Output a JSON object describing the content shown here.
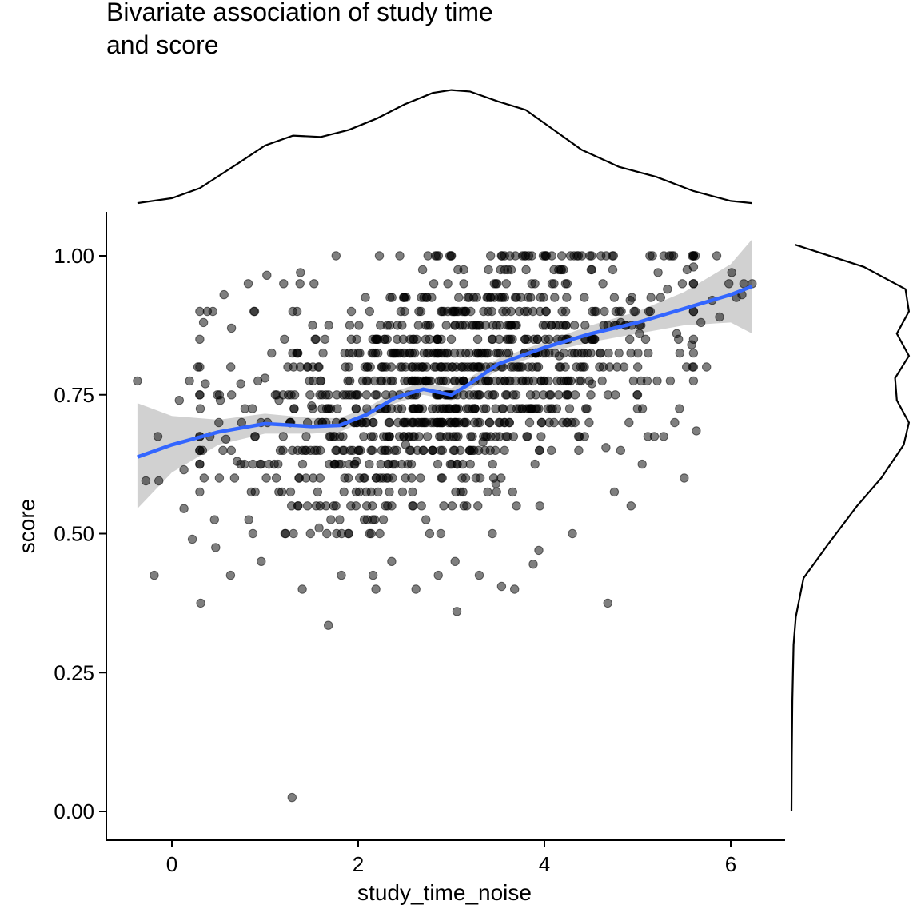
{
  "chart_data": {
    "type": "scatter",
    "title_lines": [
      "Bivariate association of study time",
      "and score"
    ],
    "xlabel": "study_time_noise",
    "ylabel": "score",
    "xlim": [
      -0.7,
      6.6
    ],
    "ylim": [
      -0.05,
      1.08
    ],
    "x_ticks": [
      0,
      2,
      4,
      6
    ],
    "x_tick_labels": [
      "0",
      "2",
      "4",
      "6"
    ],
    "y_ticks": [
      0.0,
      0.25,
      0.5,
      0.75,
      1.0
    ],
    "y_tick_labels": [
      "0.00",
      "0.25",
      "0.50",
      "0.75",
      "1.00"
    ],
    "grid": false,
    "legend": "none",
    "colors": {
      "points": "#000000",
      "smooth_line": "#3366FF",
      "confidence_band": "#BFBFBF",
      "density": "#000000"
    },
    "points": [
      [
        -0.37,
        0.775
      ],
      [
        -0.28,
        0.595
      ],
      [
        -0.19,
        0.425
      ],
      [
        -0.15,
        0.675
      ],
      [
        -0.14,
        0.595
      ],
      [
        0.08,
        0.74
      ],
      [
        0.13,
        0.545
      ],
      [
        0.13,
        0.615
      ],
      [
        0.19,
        0.775
      ],
      [
        0.22,
        0.49
      ],
      [
        0.31,
        0.375
      ],
      [
        0.33,
        0.65
      ],
      [
        0.34,
        0.88
      ],
      [
        0.38,
        0.9
      ],
      [
        0.44,
        0.9
      ],
      [
        0.47,
        0.475
      ],
      [
        0.51,
        0.6
      ],
      [
        0.52,
        0.74
      ],
      [
        0.63,
        0.425
      ],
      [
        0.74,
        0.77
      ],
      [
        0.87,
        0.5
      ],
      [
        0.96,
        0.45
      ],
      [
        1.0,
        0.78
      ],
      [
        1.15,
        0.74
      ],
      [
        1.29,
        0.025
      ],
      [
        1.4,
        0.4
      ],
      [
        1.5,
        0.73
      ],
      [
        1.58,
        0.51
      ],
      [
        1.68,
        0.335
      ],
      [
        1.82,
        0.425
      ],
      [
        1.98,
        0.63
      ],
      [
        2.16,
        0.425
      ],
      [
        2.19,
        0.4
      ],
      [
        2.36,
        0.45
      ],
      [
        2.51,
        0.66
      ],
      [
        2.62,
        0.4
      ],
      [
        2.86,
        0.425
      ],
      [
        3.04,
        0.45
      ],
      [
        3.06,
        0.36
      ],
      [
        3.3,
        0.425
      ],
      [
        3.34,
        0.665
      ],
      [
        3.48,
        0.59
      ],
      [
        3.54,
        0.405
      ],
      [
        3.68,
        0.4
      ],
      [
        3.7,
        0.55
      ],
      [
        3.88,
        0.445
      ],
      [
        3.94,
        0.47
      ],
      [
        4.16,
        0.82
      ],
      [
        4.3,
        0.5
      ],
      [
        4.68,
        0.375
      ],
      [
        4.75,
        0.575
      ],
      [
        4.93,
        0.55
      ],
      [
        5.0,
        0.75
      ],
      [
        5.18,
        0.675
      ],
      [
        5.21,
        0.775
      ],
      [
        5.5,
        0.6
      ],
      [
        5.59,
        0.8
      ],
      [
        5.63,
        0.685
      ],
      [
        5.74,
        0.8
      ],
      [
        5.88,
        0.89
      ],
      [
        6.06,
        0.925
      ],
      [
        6.14,
        0.95
      ],
      [
        6.23,
        0.95
      ],
      [
        6.12,
        0.93
      ],
      [
        5.28,
        0.675
      ],
      [
        4.66,
        0.655
      ],
      [
        4.51,
        0.77
      ],
      [
        4.48,
        0.7
      ],
      [
        4.7,
        0.8
      ],
      [
        4.92,
        0.92
      ],
      [
        4.82,
        0.88
      ],
      [
        5.12,
        0.9
      ],
      [
        5.32,
        0.94
      ],
      [
        5.02,
        0.86
      ],
      [
        5.42,
        0.86
      ],
      [
        5.58,
        0.84
      ],
      [
        5.68,
        0.88
      ],
      [
        5.98,
        0.95
      ],
      [
        5.8,
        0.92
      ],
      [
        5.6,
        0.98
      ],
      [
        5.48,
        0.95
      ],
      [
        5.22,
        0.97
      ],
      [
        6.01,
        0.97
      ],
      [
        5.85,
        1.0
      ],
      [
        5.62,
        1.0
      ],
      [
        1.38,
        0.97
      ],
      [
        1.2,
        0.95
      ],
      [
        1.02,
        0.965
      ],
      [
        0.82,
        0.95
      ],
      [
        0.64,
        0.87
      ],
      [
        0.56,
        0.93
      ],
      [
        0.36,
        0.77
      ],
      [
        0.28,
        0.8
      ],
      [
        0.58,
        0.67
      ],
      [
        0.7,
        0.63
      ]
    ],
    "smooth": {
      "x": [
        -0.37,
        0.0,
        0.5,
        1.0,
        1.5,
        1.8,
        2.1,
        2.4,
        2.7,
        3.0,
        3.2,
        3.5,
        4.0,
        4.5,
        5.0,
        5.5,
        6.0,
        6.23
      ],
      "fit": [
        0.638,
        0.66,
        0.683,
        0.698,
        0.693,
        0.695,
        0.715,
        0.745,
        0.76,
        0.75,
        0.77,
        0.805,
        0.835,
        0.86,
        0.88,
        0.905,
        0.93,
        0.945
      ],
      "lower": [
        0.545,
        0.61,
        0.66,
        0.68,
        0.68,
        0.683,
        0.705,
        0.735,
        0.75,
        0.74,
        0.76,
        0.795,
        0.825,
        0.845,
        0.86,
        0.875,
        0.88,
        0.86
      ],
      "upper": [
        0.735,
        0.712,
        0.705,
        0.716,
        0.708,
        0.708,
        0.727,
        0.757,
        0.772,
        0.762,
        0.781,
        0.815,
        0.845,
        0.875,
        0.9,
        0.935,
        0.985,
        1.03
      ]
    },
    "x_density": {
      "x": [
        -0.37,
        0.0,
        0.3,
        0.7,
        1.0,
        1.3,
        1.6,
        1.9,
        2.2,
        2.5,
        2.8,
        3.0,
        3.2,
        3.5,
        3.8,
        4.1,
        4.4,
        4.8,
        5.2,
        5.6,
        6.0,
        6.23
      ],
      "density": [
        0.005,
        0.04,
        0.11,
        0.28,
        0.41,
        0.48,
        0.47,
        0.52,
        0.6,
        0.7,
        0.78,
        0.8,
        0.79,
        0.72,
        0.66,
        0.52,
        0.38,
        0.26,
        0.19,
        0.09,
        0.02,
        0.005
      ]
    },
    "y_density": {
      "y": [
        0.0,
        0.1,
        0.2,
        0.3,
        0.35,
        0.42,
        0.48,
        0.55,
        0.6,
        0.66,
        0.7,
        0.74,
        0.78,
        0.82,
        0.86,
        0.9,
        0.94,
        0.98,
        1.02
      ],
      "density": [
        0.0,
        0.002,
        0.005,
        0.012,
        0.025,
        0.07,
        0.21,
        0.38,
        0.52,
        0.65,
        0.68,
        0.61,
        0.6,
        0.68,
        0.61,
        0.68,
        0.66,
        0.42,
        0.02
      ]
    }
  }
}
